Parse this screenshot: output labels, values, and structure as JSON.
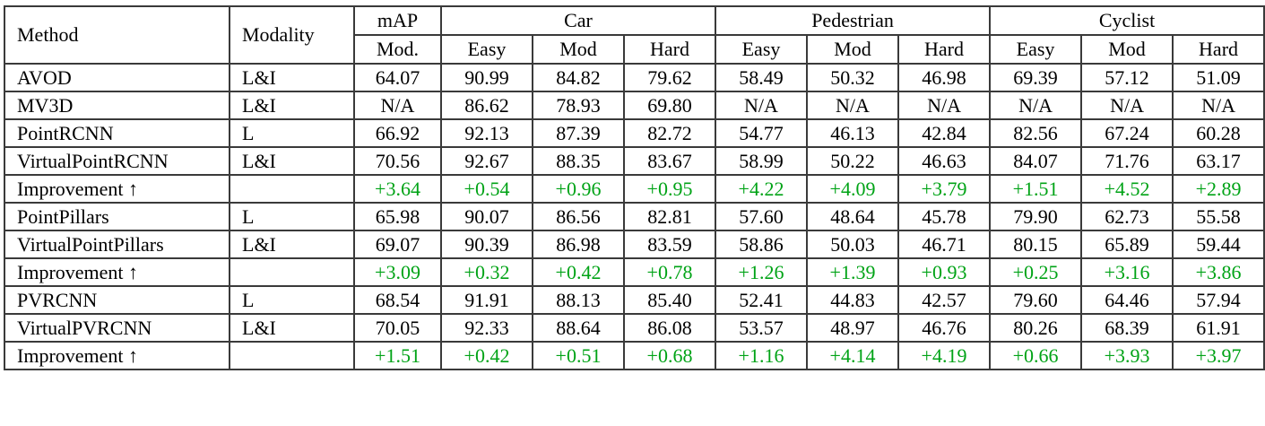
{
  "table": {
    "colors": {
      "border": "#3a3a3a",
      "text": "#000000",
      "improvement_green": "#00a316",
      "background": "#ffffff"
    },
    "header": {
      "method": "Method",
      "modality": "Modality",
      "map": "mAP",
      "map_sub": "Mod.",
      "groups": [
        {
          "label": "Car",
          "subs": [
            "Easy",
            "Mod",
            "Hard"
          ]
        },
        {
          "label": "Pedestrian",
          "subs": [
            "Easy",
            "Mod",
            "Hard"
          ]
        },
        {
          "label": "Cyclist",
          "subs": [
            "Easy",
            "Mod",
            "Hard"
          ]
        }
      ]
    },
    "rows": [
      {
        "method": "AVOD",
        "modality": "L&I",
        "type": "normal",
        "values": [
          "64.07",
          "90.99",
          "84.82",
          "79.62",
          "58.49",
          "50.32",
          "46.98",
          "69.39",
          "57.12",
          "51.09"
        ]
      },
      {
        "method": "MV3D",
        "modality": "L&I",
        "type": "normal",
        "values": [
          "N/A",
          "86.62",
          "78.93",
          "69.80",
          "N/A",
          "N/A",
          "N/A",
          "N/A",
          "N/A",
          "N/A"
        ]
      },
      {
        "method": "PointRCNN",
        "modality": "L",
        "type": "normal",
        "values": [
          "66.92",
          "92.13",
          "87.39",
          "82.72",
          "54.77",
          "46.13",
          "42.84",
          "82.56",
          "67.24",
          "60.28"
        ]
      },
      {
        "method": "VirtualPointRCNN",
        "modality": "L&I",
        "type": "normal",
        "values": [
          "70.56",
          "92.67",
          "88.35",
          "83.67",
          "58.99",
          "50.22",
          "46.63",
          "84.07",
          "71.76",
          "63.17"
        ]
      },
      {
        "method": "Improvement ↑",
        "modality": "",
        "type": "improvement",
        "values": [
          "+3.64",
          "+0.54",
          "+0.96",
          "+0.95",
          "+4.22",
          "+4.09",
          "+3.79",
          "+1.51",
          "+4.52",
          "+2.89"
        ]
      },
      {
        "method": "PointPillars",
        "modality": "L",
        "type": "normal",
        "values": [
          "65.98",
          "90.07",
          "86.56",
          "82.81",
          "57.60",
          "48.64",
          "45.78",
          "79.90",
          "62.73",
          "55.58"
        ]
      },
      {
        "method": "VirtualPointPillars",
        "modality": "L&I",
        "type": "normal",
        "values": [
          "69.07",
          "90.39",
          "86.98",
          "83.59",
          "58.86",
          "50.03",
          "46.71",
          "80.15",
          "65.89",
          "59.44"
        ]
      },
      {
        "method": "Improvement ↑",
        "modality": "",
        "type": "improvement",
        "values": [
          "+3.09",
          "+0.32",
          "+0.42",
          "+0.78",
          "+1.26",
          "+1.39",
          "+0.93",
          "+0.25",
          "+3.16",
          "+3.86"
        ]
      },
      {
        "method": "PVRCNN",
        "modality": "L",
        "type": "normal",
        "values": [
          "68.54",
          "91.91",
          "88.13",
          "85.40",
          "52.41",
          "44.83",
          "42.57",
          "79.60",
          "64.46",
          "57.94"
        ]
      },
      {
        "method": "VirtualPVRCNN",
        "modality": "L&I",
        "type": "normal",
        "values": [
          "70.05",
          "92.33",
          "88.64",
          "86.08",
          "53.57",
          "48.97",
          "46.76",
          "80.26",
          "68.39",
          "61.91"
        ]
      },
      {
        "method": "Improvement ↑",
        "modality": "",
        "type": "improvement",
        "values": [
          "+1.51",
          "+0.42",
          "+0.51",
          "+0.68",
          "+1.16",
          "+4.14",
          "+4.19",
          "+0.66",
          "+3.93",
          "+3.97"
        ]
      }
    ]
  }
}
